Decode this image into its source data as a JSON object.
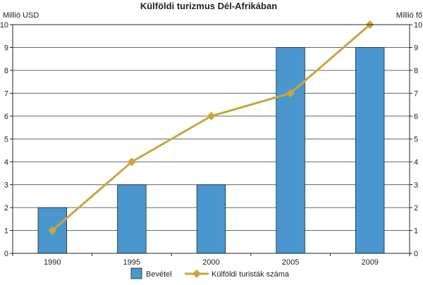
{
  "chart_data": {
    "type": "bar+line",
    "title": "Külföldi turizmus Dél-Afrikában",
    "left_axis_label": "Millió USD",
    "right_axis_label": "Millió fő",
    "categories": [
      "1990",
      "1995",
      "2000",
      "2005",
      "2009"
    ],
    "ylim": [
      0,
      10
    ],
    "y_ticks": [
      0,
      1,
      2,
      3,
      4,
      5,
      6,
      7,
      8,
      9,
      10
    ],
    "y2lim": [
      0,
      10
    ],
    "y2_ticks": [
      0,
      1,
      2,
      3,
      4,
      5,
      6,
      7,
      8,
      9,
      10
    ],
    "grid": true,
    "legend_position": "bottom",
    "series": [
      {
        "name": "Bevétel",
        "type": "bar",
        "axis": "left",
        "values": [
          2,
          3,
          3,
          9,
          9
        ],
        "color": "#4a97cf"
      },
      {
        "name": "Külföldi turisták száma",
        "type": "line",
        "axis": "right",
        "values": [
          1,
          4,
          6,
          7,
          10
        ],
        "color": "#c8a63c"
      }
    ]
  }
}
